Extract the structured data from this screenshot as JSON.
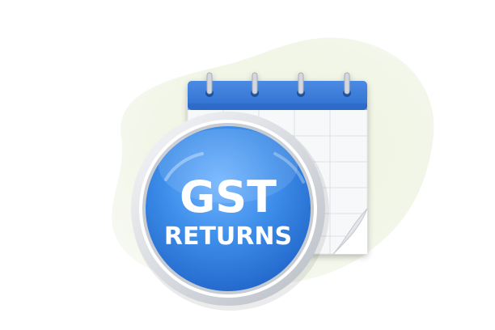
{
  "badge": {
    "line1": "GST",
    "line2": "RETURNS"
  },
  "colors": {
    "blob": "#eef3e3",
    "calendar_header": "#3a79d6",
    "calendar_body": "#f7f8fa",
    "calendar_grid": "#dcdfe4",
    "badge_blue": "#2f7fe0",
    "badge_ring": "#e6e8ec"
  },
  "icons": {
    "calendar": "calendar-icon",
    "badge": "gst-returns-badge"
  }
}
